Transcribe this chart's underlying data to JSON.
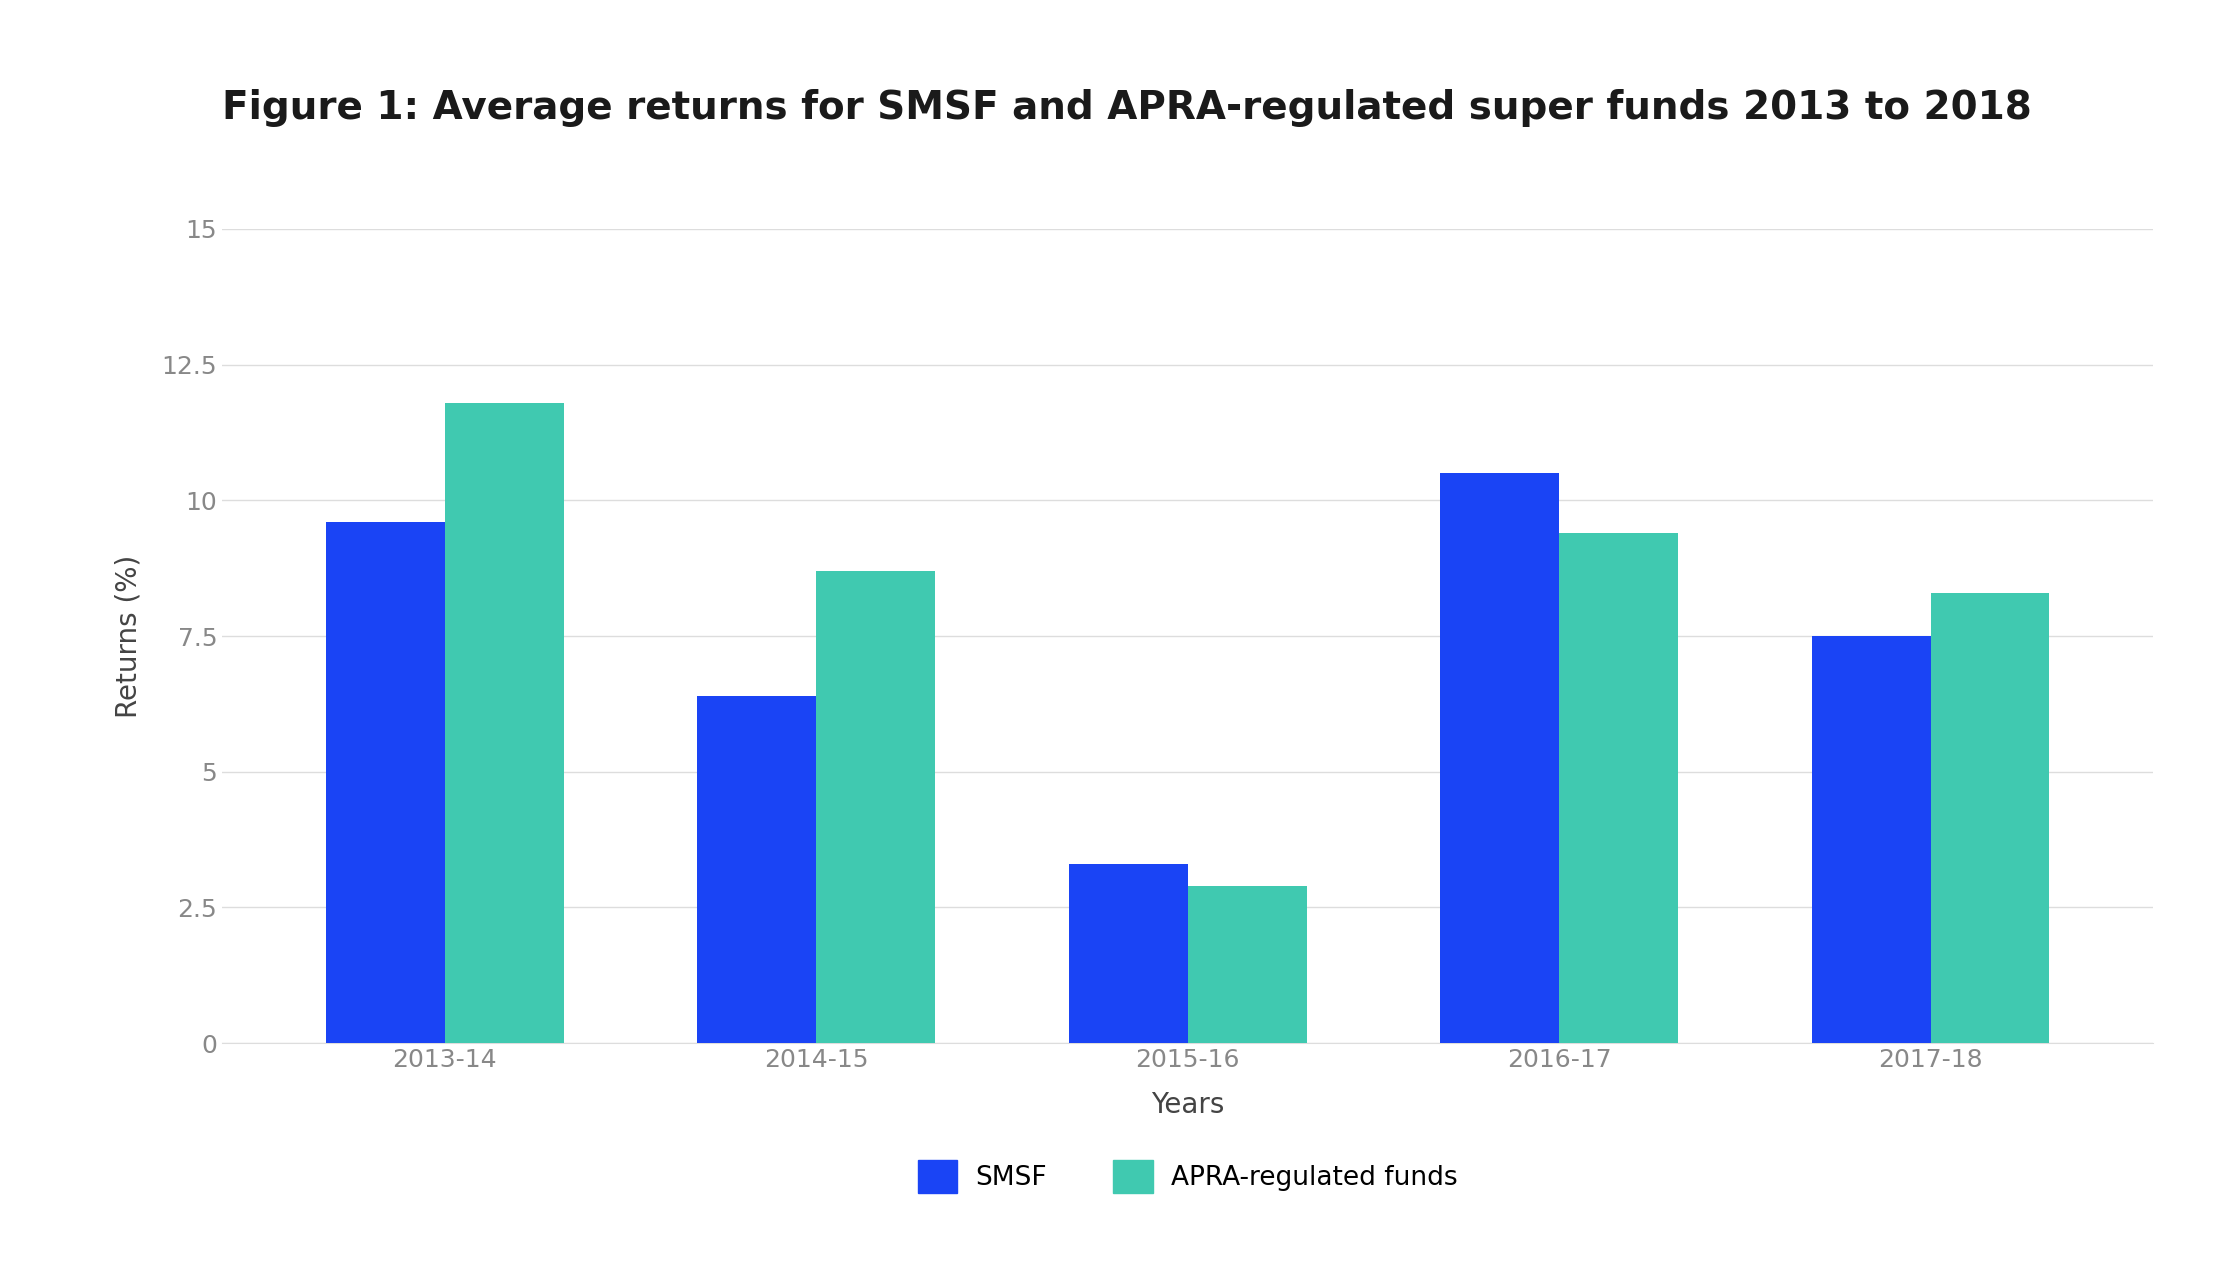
{
  "title": "Figure 1: Average returns for SMSF and APRA-regulated super funds 2013 to 2018",
  "categories": [
    "2013-14",
    "2014-15",
    "2015-16",
    "2016-17",
    "2017-18"
  ],
  "smsf_values": [
    9.6,
    6.4,
    3.3,
    10.5,
    7.5
  ],
  "apra_values": [
    11.8,
    8.7,
    2.9,
    9.4,
    8.3
  ],
  "smsf_color": "#1a44f5",
  "apra_color": "#40c9b0",
  "background_color": "#ffffff",
  "ylabel": "Returns (%)",
  "xlabel": "Years",
  "ylim": [
    0,
    15
  ],
  "yticks": [
    0,
    2.5,
    5,
    7.5,
    10,
    12.5,
    15
  ],
  "ytick_labels": [
    "0",
    "2.5",
    "5",
    "7.5",
    "10",
    "12.5",
    "15"
  ],
  "legend_labels": [
    "SMSF",
    "APRA-regulated funds"
  ],
  "title_fontsize": 28,
  "axis_label_fontsize": 20,
  "tick_fontsize": 18,
  "legend_fontsize": 19,
  "bar_width": 0.32,
  "tick_color": "#888888",
  "title_color": "#1a1a1a"
}
